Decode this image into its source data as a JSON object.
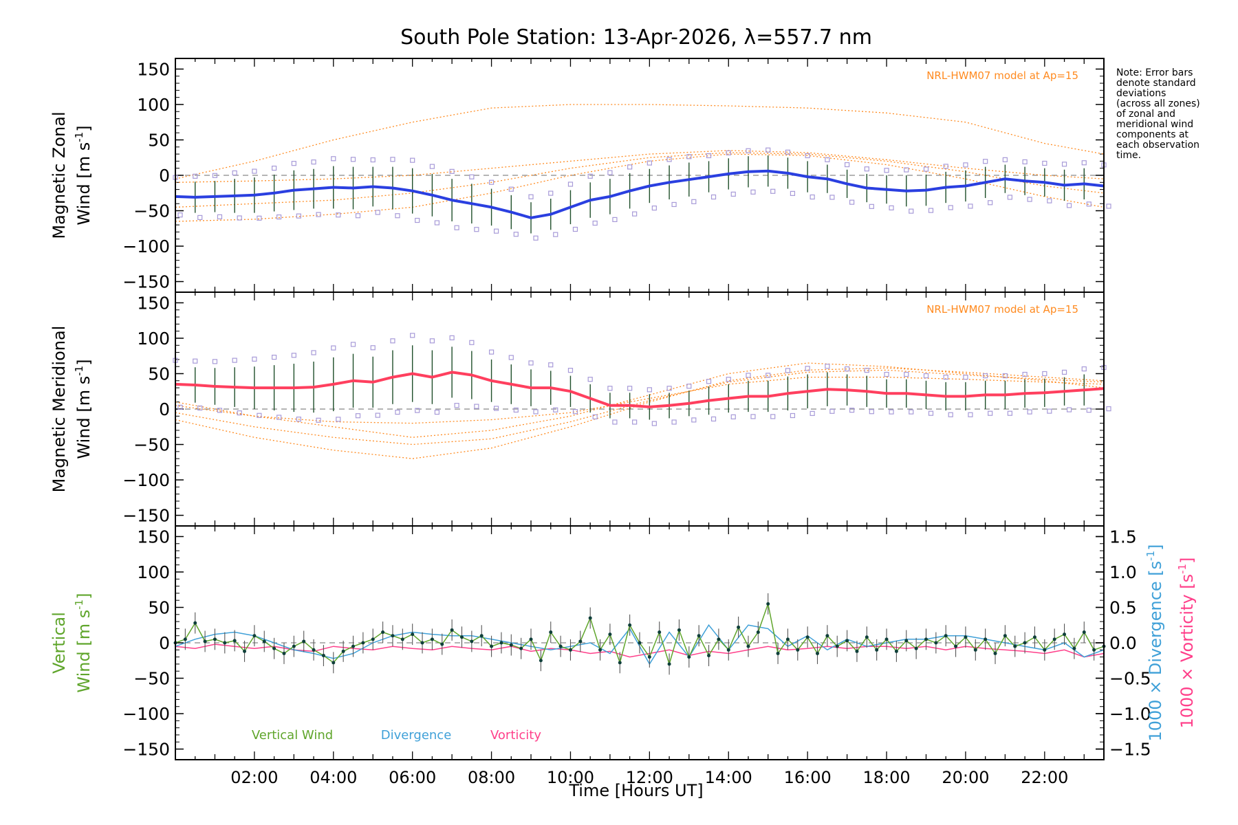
{
  "title": "South Pole Station: 13-Apr-2026, λ=557.7 nm",
  "note": {
    "lines": [
      "Note: Error bars",
      "denote standard",
      "deviations",
      "(across all zones)",
      "of zonal and",
      "meridional wind",
      "components at",
      "each observation",
      "time."
    ]
  },
  "x_axis": {
    "label": "Time [Hours UT]",
    "ticks": [
      "02:00",
      "04:00",
      "06:00",
      "08:00",
      "10:00",
      "12:00",
      "14:00",
      "16:00",
      "18:00",
      "20:00",
      "22:00"
    ],
    "tick_hours": [
      2,
      4,
      6,
      8,
      10,
      12,
      14,
      16,
      18,
      20,
      22
    ],
    "range": [
      0,
      23.5
    ]
  },
  "colors": {
    "zonal": "#2a3fe0",
    "zonal_light": "#5aa8e8",
    "meridional": "#ff3f5e",
    "model": "#ff8a1f",
    "scatter": "#a79ad8",
    "errorbar": "#1f4f2a",
    "vertical": "#5fa52b",
    "divergence": "#3fa0d8",
    "vorticity": "#ff3f8a",
    "zero": "#888888"
  },
  "chart_data": [
    {
      "name": "zonal",
      "type": "line",
      "ylabel_line1": "Magnetic Zonal",
      "ylabel_line2": "Wind [m s",
      "ylabel_sup": "-1",
      "ylabel_close": "]",
      "ylim": [
        -165,
        165
      ],
      "yticks": [
        -150,
        -100,
        -50,
        0,
        50,
        100,
        150
      ],
      "ytick_labels": [
        "−150",
        "−100",
        "−50",
        "0",
        "50",
        "100",
        "150"
      ],
      "model_label": "NRL-HWM07 model at Ap=15",
      "series": [
        {
          "name": "Zonal wind",
          "x": [
            0,
            0.5,
            1,
            1.5,
            2,
            2.5,
            3,
            3.5,
            4,
            4.5,
            5,
            5.5,
            6,
            6.5,
            7,
            7.5,
            8,
            8.5,
            9,
            9.5,
            10,
            10.5,
            11,
            11.5,
            12,
            12.5,
            13,
            13.5,
            14,
            14.5,
            15,
            15.5,
            16,
            16.5,
            17,
            17.5,
            18,
            18.5,
            19,
            19.5,
            20,
            20.5,
            21,
            21.5,
            22,
            22.5,
            23,
            23.5
          ],
          "y": [
            -30,
            -31,
            -30,
            -29,
            -28,
            -25,
            -21,
            -19,
            -17,
            -18,
            -16,
            -18,
            -22,
            -28,
            -35,
            -40,
            -45,
            -52,
            -60,
            -55,
            -45,
            -35,
            -30,
            -22,
            -15,
            -10,
            -6,
            -2,
            2,
            5,
            6,
            3,
            -2,
            -5,
            -12,
            -18,
            -20,
            -22,
            -21,
            -17,
            -15,
            -10,
            -5,
            -8,
            -10,
            -14,
            -12,
            -15
          ],
          "err": [
            20,
            22,
            22,
            24,
            25,
            26,
            28,
            28,
            30,
            30,
            28,
            30,
            32,
            30,
            30,
            28,
            26,
            24,
            22,
            22,
            24,
            25,
            25,
            25,
            24,
            24,
            24,
            22,
            22,
            22,
            22,
            22,
            22,
            20,
            20,
            20,
            20,
            22,
            22,
            22,
            22,
            22,
            20,
            20,
            20,
            22,
            22,
            22
          ]
        },
        {
          "name": "Model (Ap=15) a",
          "x": [
            0,
            2,
            4,
            6,
            8,
            10,
            12,
            14,
            16,
            18,
            20,
            22,
            23.5
          ],
          "y": [
            -5,
            20,
            50,
            75,
            95,
            100,
            100,
            98,
            95,
            88,
            75,
            45,
            30
          ]
        },
        {
          "name": "Model (Ap=15) b",
          "x": [
            0,
            2,
            4,
            6,
            8,
            10,
            12,
            14,
            16,
            18,
            20,
            22,
            23.5
          ],
          "y": [
            -45,
            -40,
            -35,
            -25,
            -10,
            10,
            25,
            32,
            30,
            20,
            5,
            -15,
            -25
          ]
        },
        {
          "name": "Model (Ap=15) c",
          "x": [
            0,
            2,
            4,
            6,
            8,
            10,
            12,
            14,
            16,
            18,
            20,
            22,
            23.5
          ],
          "y": [
            -65,
            -62,
            -55,
            -45,
            -25,
            0,
            20,
            30,
            28,
            15,
            -5,
            -30,
            -45
          ]
        },
        {
          "name": "Model (Ap=15) d",
          "x": [
            0,
            2,
            4,
            6,
            8,
            10,
            12,
            14,
            16,
            18,
            20,
            22,
            23.5
          ],
          "y": [
            -10,
            -8,
            -5,
            0,
            10,
            20,
            30,
            35,
            32,
            22,
            10,
            0,
            -5
          ]
        }
      ]
    },
    {
      "name": "meridional",
      "type": "line",
      "ylabel_line1": "Magnetic Meridional",
      "ylabel_line2": "Wind [m s",
      "ylabel_sup": "-1",
      "ylabel_close": "]",
      "ylim": [
        -165,
        165
      ],
      "yticks": [
        -150,
        -100,
        -50,
        0,
        50,
        100,
        150
      ],
      "ytick_labels": [
        "−150",
        "−100",
        "−50",
        "0",
        "50",
        "100",
        "150"
      ],
      "model_label": "NRL-HWM07 model at Ap=15",
      "series": [
        {
          "name": "Meridional wind",
          "x": [
            0,
            0.5,
            1,
            1.5,
            2,
            2.5,
            3,
            3.5,
            4,
            4.5,
            5,
            5.5,
            6,
            6.5,
            7,
            7.5,
            8,
            8.5,
            9,
            9.5,
            10,
            10.5,
            11,
            11.5,
            12,
            12.5,
            13,
            13.5,
            14,
            14.5,
            15,
            15.5,
            16,
            16.5,
            17,
            17.5,
            18,
            18.5,
            19,
            19.5,
            20,
            20.5,
            21,
            21.5,
            22,
            22.5,
            23,
            23.5
          ],
          "y": [
            35,
            34,
            32,
            31,
            30,
            30,
            30,
            31,
            35,
            40,
            38,
            45,
            50,
            45,
            52,
            48,
            40,
            35,
            30,
            30,
            25,
            15,
            5,
            5,
            3,
            5,
            8,
            12,
            15,
            18,
            18,
            22,
            25,
            28,
            27,
            25,
            22,
            22,
            20,
            18,
            18,
            20,
            20,
            22,
            23,
            25,
            27,
            29
          ],
          "err": [
            25,
            25,
            26,
            28,
            30,
            32,
            34,
            36,
            38,
            38,
            36,
            38,
            40,
            38,
            36,
            34,
            30,
            28,
            26,
            24,
            22,
            20,
            18,
            18,
            18,
            18,
            18,
            20,
            20,
            22,
            22,
            24,
            24,
            24,
            22,
            22,
            20,
            20,
            20,
            20,
            20,
            20,
            20,
            20,
            20,
            20,
            22,
            22
          ]
        },
        {
          "name": "Model (Ap=15) a",
          "x": [
            0,
            2,
            4,
            6,
            8,
            10,
            12,
            14,
            16,
            18,
            20,
            22,
            23.5
          ],
          "y": [
            10,
            -10,
            -25,
            -40,
            -30,
            -10,
            20,
            50,
            65,
            60,
            50,
            40,
            30
          ]
        },
        {
          "name": "Model (Ap=15) b",
          "x": [
            0,
            2,
            4,
            6,
            8,
            10,
            12,
            14,
            16,
            18,
            20,
            22,
            23.5
          ],
          "y": [
            -15,
            -40,
            -58,
            -70,
            -55,
            -25,
            10,
            40,
            55,
            58,
            52,
            45,
            40
          ]
        },
        {
          "name": "Model (Ap=15) c",
          "x": [
            0,
            2,
            4,
            6,
            8,
            10,
            12,
            14,
            16,
            18,
            20,
            22,
            23.5
          ],
          "y": [
            5,
            -10,
            -18,
            -20,
            -15,
            -5,
            15,
            35,
            45,
            45,
            42,
            38,
            35
          ]
        },
        {
          "name": "Model (Ap=15) d",
          "x": [
            0,
            2,
            4,
            6,
            8,
            10,
            12,
            14,
            16,
            18,
            20,
            22,
            23.5
          ],
          "y": [
            -5,
            -25,
            -40,
            -50,
            -42,
            -18,
            12,
            38,
            52,
            55,
            48,
            42,
            38
          ]
        }
      ]
    },
    {
      "name": "vertical",
      "type": "line",
      "ylabel_line1": "Vertical",
      "ylabel_line2": "Wind [m s",
      "ylabel_sup": "-1",
      "ylabel_close": "]",
      "ylim": [
        -165,
        165
      ],
      "yticks": [
        -150,
        -100,
        -50,
        0,
        50,
        100,
        150
      ],
      "ytick_labels": [
        "−150",
        "−100",
        "−50",
        "0",
        "50",
        "100",
        "150"
      ],
      "y2label_div": "1000 × Divergence [s",
      "y2label_vor": "1000 × Vorticity [s",
      "y2label_sup": "-1",
      "y2label_close": "]",
      "y2lim": [
        -1.65,
        1.65
      ],
      "y2ticks": [
        -1.5,
        -1.0,
        -0.5,
        0.0,
        0.5,
        1.0,
        1.5
      ],
      "y2tick_labels": [
        "−1.5",
        "−1.0",
        "−0.5",
        "0.0",
        "0.5",
        "1.0",
        "1.5"
      ],
      "legend": [
        "Vertical Wind",
        "Divergence",
        "Vorticity"
      ],
      "series": [
        {
          "name": "Vertical Wind",
          "x": [
            0,
            0.25,
            0.5,
            0.75,
            1,
            1.25,
            1.5,
            1.75,
            2,
            2.25,
            2.5,
            2.75,
            3,
            3.25,
            3.5,
            3.75,
            4,
            4.25,
            4.5,
            4.75,
            5,
            5.25,
            5.5,
            5.75,
            6,
            6.25,
            6.5,
            6.75,
            7,
            7.25,
            7.5,
            7.75,
            8,
            8.25,
            8.5,
            8.75,
            9,
            9.25,
            9.5,
            9.75,
            10,
            10.25,
            10.5,
            10.75,
            11,
            11.25,
            11.5,
            11.75,
            12,
            12.25,
            12.5,
            12.75,
            13,
            13.25,
            13.5,
            13.75,
            14,
            14.25,
            14.5,
            14.75,
            15,
            15.25,
            15.5,
            15.75,
            16,
            16.25,
            16.5,
            16.75,
            17,
            17.25,
            17.5,
            17.75,
            18,
            18.25,
            18.5,
            18.75,
            19,
            19.25,
            19.5,
            19.75,
            20,
            20.25,
            20.5,
            20.75,
            21,
            21.25,
            21.5,
            21.75,
            22,
            22.25,
            22.5,
            22.75,
            23,
            23.25,
            23.5
          ],
          "y": [
            0,
            5,
            28,
            2,
            5,
            0,
            3,
            -12,
            10,
            2,
            -8,
            -15,
            -5,
            2,
            -10,
            -18,
            -28,
            -12,
            -5,
            0,
            5,
            15,
            10,
            5,
            12,
            0,
            5,
            -2,
            18,
            8,
            2,
            10,
            -5,
            0,
            -3,
            -8,
            5,
            -25,
            15,
            -5,
            -10,
            2,
            35,
            -10,
            12,
            -28,
            25,
            0,
            -20,
            15,
            -30,
            18,
            -20,
            10,
            -18,
            5,
            -10,
            22,
            -5,
            15,
            55,
            -15,
            5,
            -10,
            8,
            -15,
            10,
            -5,
            3,
            -12,
            8,
            -10,
            5,
            -12,
            3,
            -8,
            5,
            0,
            10,
            -5,
            8,
            -10,
            5,
            -15,
            10,
            -5,
            0,
            8,
            -10,
            5,
            12,
            -8,
            15,
            -10,
            -5
          ]
        },
        {
          "name": "Divergence",
          "x": [
            0,
            0.5,
            1,
            1.5,
            2,
            2.5,
            3,
            3.5,
            4,
            4.5,
            5,
            5.5,
            6,
            6.5,
            7,
            7.5,
            8,
            8.5,
            9,
            9.5,
            10,
            10.5,
            11,
            11.5,
            12,
            12.5,
            13,
            13.5,
            14,
            14.5,
            15,
            15.5,
            16,
            16.5,
            17,
            17.5,
            18,
            18.5,
            19,
            19.5,
            20,
            20.5,
            21,
            21.5,
            22,
            22.5,
            23,
            23.5
          ],
          "y": [
            -0.05,
            0.05,
            0.12,
            0.15,
            0.1,
            0.0,
            -0.1,
            -0.15,
            -0.22,
            -0.15,
            0.0,
            0.1,
            0.15,
            0.12,
            0.1,
            0.1,
            0.05,
            0.0,
            -0.05,
            -0.1,
            -0.05,
            0.0,
            -0.15,
            0.2,
            -0.3,
            0.15,
            -0.2,
            0.25,
            -0.1,
            0.25,
            0.2,
            -0.05,
            0.1,
            -0.1,
            0.05,
            -0.05,
            0.0,
            0.05,
            0.05,
            0.1,
            0.1,
            0.05,
            0.0,
            -0.05,
            -0.1,
            0.0,
            -0.2,
            -0.1
          ]
        },
        {
          "name": "Vorticity",
          "x": [
            0,
            0.5,
            1,
            1.5,
            2,
            2.5,
            3,
            3.5,
            4,
            4.5,
            5,
            5.5,
            6,
            6.5,
            7,
            7.5,
            8,
            8.5,
            9,
            9.5,
            10,
            10.5,
            11,
            11.5,
            12,
            12.5,
            13,
            13.5,
            14,
            14.5,
            15,
            15.5,
            16,
            16.5,
            17,
            17.5,
            18,
            18.5,
            19,
            19.5,
            20,
            20.5,
            21,
            21.5,
            22,
            22.5,
            23,
            23.5
          ],
          "y": [
            -0.05,
            -0.08,
            -0.02,
            -0.05,
            -0.08,
            -0.05,
            -0.1,
            -0.12,
            -0.05,
            -0.08,
            -0.1,
            -0.05,
            -0.08,
            -0.1,
            -0.05,
            -0.08,
            -0.1,
            -0.05,
            -0.12,
            -0.08,
            -0.1,
            -0.15,
            -0.12,
            -0.2,
            -0.15,
            -0.1,
            -0.18,
            -0.12,
            -0.15,
            -0.1,
            -0.05,
            -0.1,
            -0.08,
            -0.05,
            -0.08,
            -0.05,
            -0.05,
            -0.08,
            -0.05,
            -0.1,
            -0.05,
            -0.08,
            -0.1,
            -0.12,
            -0.15,
            -0.1,
            -0.2,
            -0.15
          ]
        }
      ]
    }
  ]
}
